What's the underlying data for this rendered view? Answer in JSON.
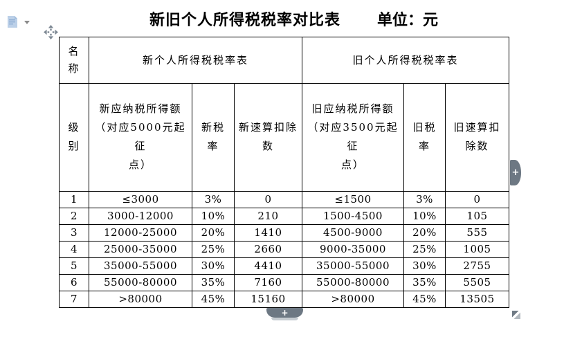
{
  "page": {
    "title": "新旧个人所得税税率对比表",
    "unit_label": "单位：元"
  },
  "icons": {
    "paste_options": "clipboard-paste",
    "paste_dropdown": "chevron-down",
    "table_move_handle": "move-cross-arrows",
    "add_row_right": "+",
    "add_row_bottom": "+",
    "resize_handle": "diagonal-resize"
  },
  "colors": {
    "background": "#ffffff",
    "text": "#000000",
    "table_border": "#000000",
    "paste_icon_blue": "#bcd0e8",
    "paste_icon_lines": "#8fafd4",
    "handle_gray": "#7d8893",
    "add_button_slate": "#6d7883",
    "resize_dark": "#6f7a84",
    "resize_light": "#b2b9bf"
  },
  "table": {
    "header_row1": {
      "name_label": "名\n称",
      "new_table_label": "新个人所得税税率表",
      "old_table_label": "旧个人所得税税率表"
    },
    "header_row2": {
      "level_label": "级\n别",
      "new_income_label": "新应纳税所得额\n（对应5000元起征\n点）",
      "new_rate_label": "新税\n率",
      "new_deduction_label": "新速算扣除\n数",
      "old_income_label": "旧应纳税所得额\n（对应3500元起征\n点）",
      "old_rate_label": "旧税\n率",
      "old_deduction_label": "旧速算扣\n除数"
    },
    "rows": [
      [
        "1",
        "≤3000",
        "3%",
        "0",
        "≤1500",
        "3%",
        "0"
      ],
      [
        "2",
        "3000-12000",
        "10%",
        "210",
        "1500-4500",
        "10%",
        "105"
      ],
      [
        "3",
        "12000-25000",
        "20%",
        "1410",
        "4500-9000",
        "20%",
        "555"
      ],
      [
        "4",
        "25000-35000",
        "25%",
        "2660",
        "9000-35000",
        "25%",
        "1005"
      ],
      [
        "5",
        "35000-55000",
        "30%",
        "4410",
        "35000-55000",
        "30%",
        "2755"
      ],
      [
        "6",
        "55000-80000",
        "35%",
        "7160",
        "55000-80000",
        "35%",
        "5505"
      ],
      [
        "7",
        ">80000",
        "45%",
        "15160",
        ">80000",
        "45%",
        "13505"
      ]
    ]
  }
}
